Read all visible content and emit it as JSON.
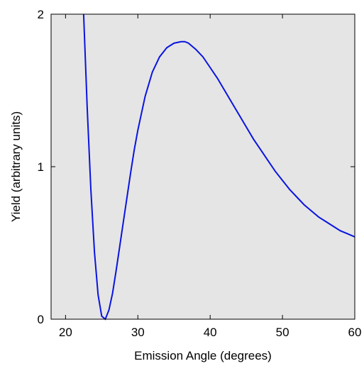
{
  "chart_data": {
    "type": "line",
    "xlabel": "Emission Angle (degrees)",
    "ylabel": "Yield (arbitrary units)",
    "xlim": [
      18,
      60
    ],
    "ylim": [
      0,
      2
    ],
    "xticks": [
      "20",
      "30",
      "40",
      "50",
      "60"
    ],
    "yticks": [
      "0",
      "1",
      "2"
    ],
    "grid": false,
    "legend": "none",
    "colors": {
      "line": "#0a14e0",
      "plot_background": "#e5e5e5",
      "axes": "#000000"
    },
    "series": [
      {
        "x": [
          22.5,
          23.0,
          23.5,
          24.0,
          24.5,
          25.0,
          25.5,
          26.0,
          26.5,
          27.0,
          27.5,
          28.0,
          28.5,
          29.0,
          29.5,
          30.0,
          31.0,
          32.0,
          33.0,
          34.0,
          35.0,
          36.0,
          36.5,
          37.0,
          38.0,
          39.0,
          40.0,
          41.0,
          42.0,
          43.0,
          44.0,
          45.0,
          46.0,
          47.0,
          48.0,
          49.0,
          50.0,
          51.0,
          52.0,
          53.0,
          54.0,
          55.0,
          56.0,
          57.0,
          58.0,
          59.0,
          60.0
        ],
        "y": [
          2.0,
          1.38,
          0.85,
          0.44,
          0.16,
          0.02,
          0.0,
          0.06,
          0.17,
          0.32,
          0.48,
          0.64,
          0.8,
          0.96,
          1.11,
          1.24,
          1.46,
          1.62,
          1.72,
          1.78,
          1.81,
          1.82,
          1.82,
          1.81,
          1.77,
          1.72,
          1.65,
          1.58,
          1.5,
          1.42,
          1.34,
          1.26,
          1.18,
          1.11,
          1.04,
          0.97,
          0.91,
          0.85,
          0.8,
          0.75,
          0.71,
          0.67,
          0.64,
          0.61,
          0.58,
          0.56,
          0.54
        ]
      }
    ]
  }
}
